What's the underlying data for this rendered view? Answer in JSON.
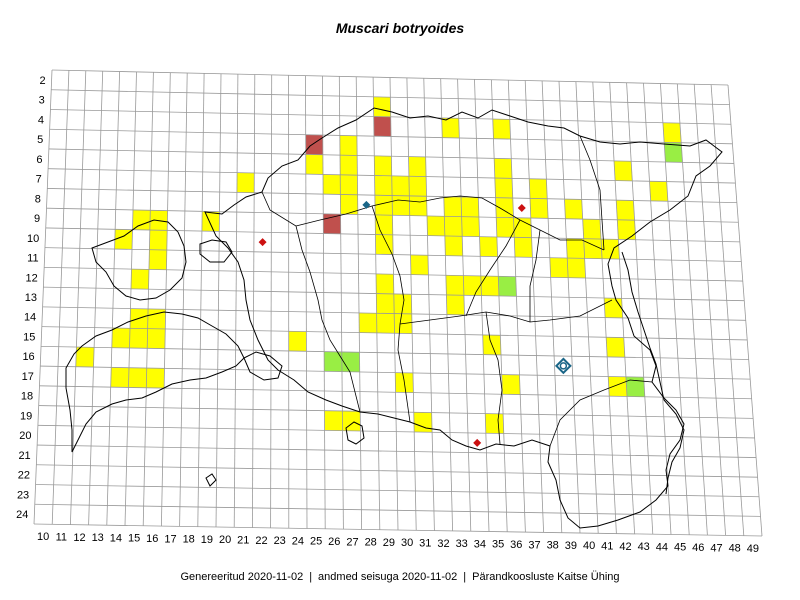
{
  "title": "Muscari botryoides",
  "footer": {
    "generated": "Genereeritud 2020-11-02",
    "data_status": "andmed seisuga 2020-11-02",
    "organization": "Pärandkoosluste Kaitse Ühing",
    "separator": "|"
  },
  "grid": {
    "columns": [
      10,
      11,
      12,
      13,
      14,
      15,
      16,
      17,
      18,
      19,
      20,
      21,
      22,
      23,
      24,
      25,
      26,
      27,
      28,
      29,
      30,
      31,
      32,
      33,
      34,
      35,
      36,
      37,
      38,
      39,
      40,
      41,
      42,
      43,
      44,
      45,
      46,
      47,
      48,
      49
    ],
    "rows": [
      2,
      3,
      4,
      5,
      6,
      7,
      8,
      9,
      10,
      11,
      12,
      13,
      14,
      15,
      16,
      17,
      18,
      19,
      20,
      21,
      22,
      23,
      24
    ]
  },
  "legend_colors": {
    "yellow": "#ffff00",
    "red": "#c0504d",
    "green": "#99ee44",
    "diamond_red": "#cc1111",
    "diamond_blue": "#1a6688"
  },
  "cells": {
    "yellow": [
      [
        29,
        3
      ],
      [
        29,
        4
      ],
      [
        33,
        4
      ],
      [
        36,
        4
      ],
      [
        27,
        5
      ],
      [
        46,
        4
      ],
      [
        25,
        6
      ],
      [
        27,
        6
      ],
      [
        29,
        6
      ],
      [
        31,
        6
      ],
      [
        36,
        6
      ],
      [
        43,
        6
      ],
      [
        21,
        7
      ],
      [
        26,
        7
      ],
      [
        27,
        7
      ],
      [
        29,
        7
      ],
      [
        30,
        7
      ],
      [
        31,
        7
      ],
      [
        36,
        7
      ],
      [
        38,
        7
      ],
      [
        27,
        8
      ],
      [
        29,
        8
      ],
      [
        30,
        8
      ],
      [
        31,
        8
      ],
      [
        33,
        8
      ],
      [
        34,
        8
      ],
      [
        36,
        8
      ],
      [
        38,
        8
      ],
      [
        40,
        8
      ],
      [
        43,
        8
      ],
      [
        45,
        7
      ],
      [
        15,
        9
      ],
      [
        16,
        9
      ],
      [
        19,
        9
      ],
      [
        29,
        9
      ],
      [
        32,
        9
      ],
      [
        33,
        9
      ],
      [
        34,
        9
      ],
      [
        36,
        9
      ],
      [
        37,
        9
      ],
      [
        41,
        9
      ],
      [
        43,
        9
      ],
      [
        14,
        10
      ],
      [
        16,
        10
      ],
      [
        29,
        10
      ],
      [
        33,
        10
      ],
      [
        35,
        10
      ],
      [
        37,
        10
      ],
      [
        40,
        10
      ],
      [
        41,
        10
      ],
      [
        42,
        10
      ],
      [
        16,
        11
      ],
      [
        31,
        11
      ],
      [
        39,
        11
      ],
      [
        40,
        11
      ],
      [
        15,
        12
      ],
      [
        29,
        12
      ],
      [
        33,
        12
      ],
      [
        34,
        12
      ],
      [
        35,
        12
      ],
      [
        29,
        13
      ],
      [
        30,
        13
      ],
      [
        33,
        13
      ],
      [
        42,
        13
      ],
      [
        15,
        14
      ],
      [
        16,
        14
      ],
      [
        28,
        14
      ],
      [
        29,
        14
      ],
      [
        30,
        14
      ],
      [
        14,
        15
      ],
      [
        15,
        15
      ],
      [
        16,
        15
      ],
      [
        24,
        15
      ],
      [
        35,
        15
      ],
      [
        42,
        15
      ],
      [
        12,
        16
      ],
      [
        14,
        17
      ],
      [
        15,
        17
      ],
      [
        16,
        17
      ],
      [
        30,
        17
      ],
      [
        36,
        17
      ],
      [
        42,
        17
      ],
      [
        26,
        19
      ],
      [
        27,
        19
      ],
      [
        31,
        19
      ],
      [
        35,
        19
      ]
    ],
    "red": [
      [
        25,
        5
      ],
      [
        29,
        4
      ],
      [
        26,
        9
      ]
    ],
    "green": [
      [
        26,
        16
      ],
      [
        27,
        16
      ],
      [
        36,
        12
      ],
      [
        46,
        5
      ],
      [
        43,
        17
      ]
    ]
  },
  "markers": [
    {
      "type": "diamond",
      "color": "red",
      "col": 22,
      "row": 10
    },
    {
      "type": "diamond",
      "color": "blue",
      "col": 28,
      "row": 8
    },
    {
      "type": "diamond",
      "color": "red",
      "col": 37,
      "row": 8
    },
    {
      "type": "diamond",
      "color": "red",
      "col": 34,
      "row": 20
    },
    {
      "type": "diamond-ring",
      "color": "blue",
      "col": 39,
      "row": 16
    }
  ]
}
